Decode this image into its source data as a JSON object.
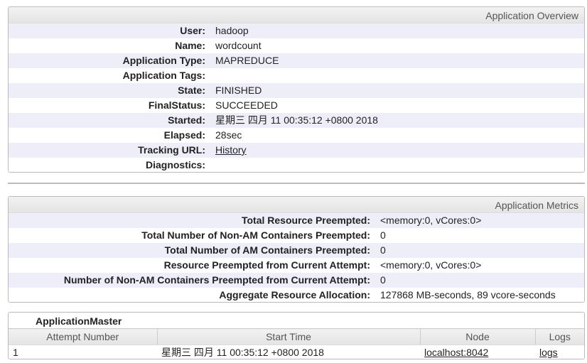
{
  "overview": {
    "title": "Application Overview",
    "rows": [
      {
        "label": "User:",
        "value": "hadoop"
      },
      {
        "label": "Name:",
        "value": "wordcount"
      },
      {
        "label": "Application Type:",
        "value": "MAPREDUCE"
      },
      {
        "label": "Application Tags:",
        "value": ""
      },
      {
        "label": "State:",
        "value": "FINISHED"
      },
      {
        "label": "FinalStatus:",
        "value": "SUCCEEDED"
      },
      {
        "label": "Started:",
        "value": "星期三 四月 11 00:35:12 +0800 2018"
      },
      {
        "label": "Elapsed:",
        "value": "28sec"
      },
      {
        "label": "Tracking URL:",
        "value": "History",
        "link": true
      },
      {
        "label": "Diagnostics:",
        "value": ""
      }
    ]
  },
  "metrics": {
    "title": "Application Metrics",
    "rows": [
      {
        "label": "Total Resource Preempted:",
        "value": "<memory:0, vCores:0>"
      },
      {
        "label": "Total Number of Non-AM Containers Preempted:",
        "value": "0"
      },
      {
        "label": "Total Number of AM Containers Preempted:",
        "value": "0"
      },
      {
        "label": "Resource Preempted from Current Attempt:",
        "value": "<memory:0, vCores:0>"
      },
      {
        "label": "Number of Non-AM Containers Preempted from Current Attempt:",
        "value": "0"
      },
      {
        "label": "Aggregate Resource Allocation:",
        "value": "127868 MB-seconds, 89 vcore-seconds"
      }
    ]
  },
  "am": {
    "title": "ApplicationMaster",
    "columns": [
      "Attempt Number",
      "Start Time",
      "Node",
      "Logs"
    ],
    "rows": [
      {
        "attempt": "1",
        "start": "星期三 四月 11 00:35:12 +0800 2018",
        "node": "localhost:8042",
        "logs": "logs"
      }
    ]
  }
}
